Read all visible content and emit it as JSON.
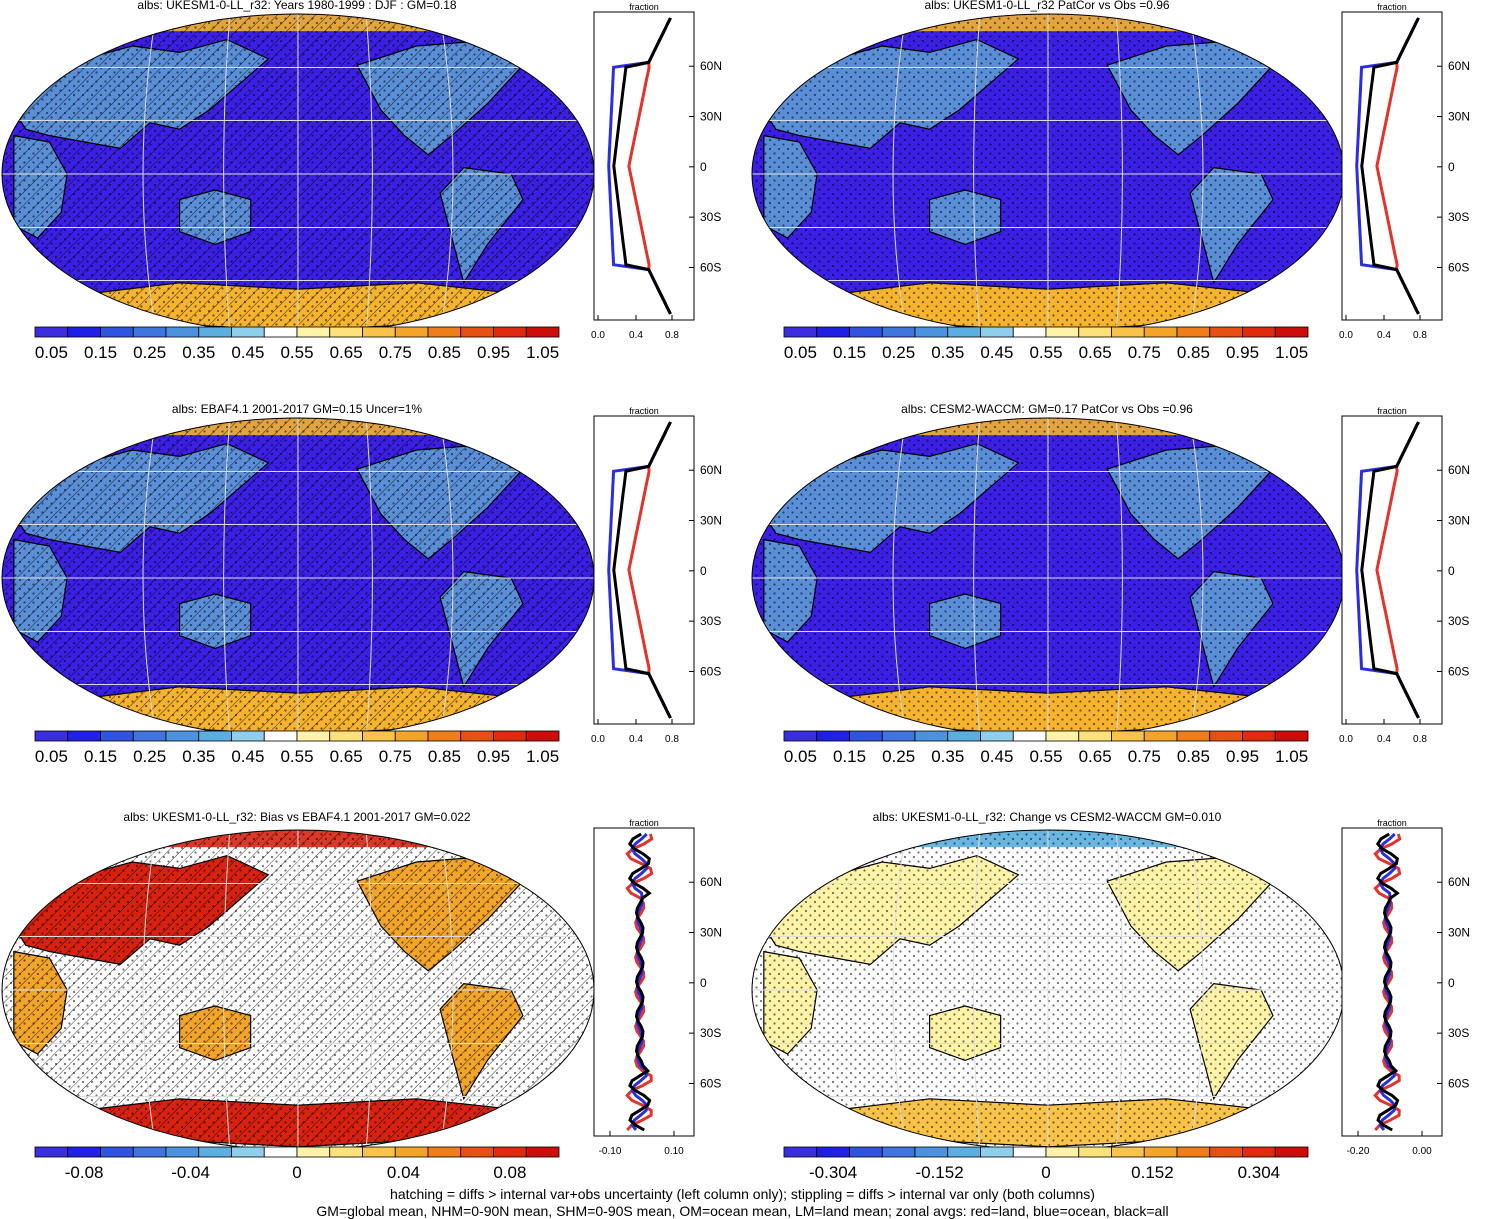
{
  "panels": [
    {
      "title": "albs: UKESM1-0-LL_r32: Years 1980-1999 : DJF : GM=0.18",
      "style": "abs",
      "hatch": true,
      "stipple": true,
      "zonal_xlabel": "fraction",
      "zonal_xticks": [
        "0.0",
        "0.4",
        "0.8"
      ],
      "cbar": [
        "0.05",
        "0.15",
        "0.25",
        "0.35",
        "0.45",
        "0.55",
        "0.65",
        "0.75",
        "0.85",
        "0.95",
        "1.05"
      ]
    },
    {
      "title": "albs: UKESM1-0-LL_r32 PatCor vs Obs =0.96",
      "style": "abs",
      "hatch": false,
      "stipple": true,
      "zonal_xlabel": "fraction",
      "zonal_xticks": [
        "0.0",
        "0.4",
        "0.8"
      ],
      "cbar": [
        "0.05",
        "0.15",
        "0.25",
        "0.35",
        "0.45",
        "0.55",
        "0.65",
        "0.75",
        "0.85",
        "0.95",
        "1.05"
      ]
    },
    {
      "title": "albs: EBAF4.1 2001-2017 GM=0.15 Uncer=1%",
      "style": "abs",
      "hatch": true,
      "stipple": true,
      "zonal_xlabel": "fraction",
      "zonal_xticks": [
        "0.0",
        "0.4",
        "0.8"
      ],
      "cbar": [
        "0.05",
        "0.15",
        "0.25",
        "0.35",
        "0.45",
        "0.55",
        "0.65",
        "0.75",
        "0.85",
        "0.95",
        "1.05"
      ]
    },
    {
      "title": "albs: CESM2-WACCM: GM=0.17 PatCor vs Obs =0.96",
      "style": "abs",
      "hatch": false,
      "stipple": true,
      "zonal_xlabel": "fraction",
      "zonal_xticks": [
        "0.0",
        "0.4",
        "0.8"
      ],
      "cbar": [
        "0.05",
        "0.15",
        "0.25",
        "0.35",
        "0.45",
        "0.55",
        "0.65",
        "0.75",
        "0.85",
        "0.95",
        "1.05"
      ]
    },
    {
      "title": "albs: UKESM1-0-LL_r32: Bias vs EBAF4.1 2001-2017 GM=0.022",
      "style": "diff",
      "hatch": true,
      "stipple": true,
      "zonal_xlabel": "fraction",
      "zonal_xticks": [
        "-0.10",
        "0.10"
      ],
      "cbar": [
        "-0.08",
        "-0.04",
        "0",
        "0.04",
        "0.08"
      ]
    },
    {
      "title": "albs: UKESM1-0-LL_r32: Change vs CESM2-WACCM GM=0.010",
      "style": "diff2",
      "hatch": false,
      "stipple": true,
      "zonal_xlabel": "fraction",
      "zonal_xticks": [
        "-0.20",
        "0.00"
      ],
      "cbar": [
        "-0.304",
        "-0.152",
        "0",
        "0.152",
        "0.304"
      ]
    }
  ],
  "lat_labels": [
    "60N",
    "30N",
    "0",
    "30S",
    "60S"
  ],
  "colors": {
    "palette": [
      "#3c2ee0",
      "#1f1fe6",
      "#2f55e0",
      "#3f75de",
      "#4c93df",
      "#5aaee0",
      "#8fcfee",
      "#ffffff",
      "#fff3a8",
      "#fde17a",
      "#f8c348",
      "#f3a52a",
      "#ef7d1a",
      "#e84f12",
      "#df2a10",
      "#cc0d0a"
    ],
    "ocean": "#3b1fe4",
    "land": "#5a8fd8",
    "ice": "#f5b32e",
    "land_line": "#e5322a",
    "ocean_line": "#2a2ee0",
    "all_line": "#000000"
  },
  "footer": {
    "line1": "hatching = diffs > internal var+obs uncertainty (left column only); stippling = diffs > internal var only (both columns)",
    "line2": "GM=global mean, NHM=0-90N mean, SHM=0-90S mean, OM=ocean mean, LM=land mean; zonal avgs: red=land, blue=ocean, black=all"
  }
}
